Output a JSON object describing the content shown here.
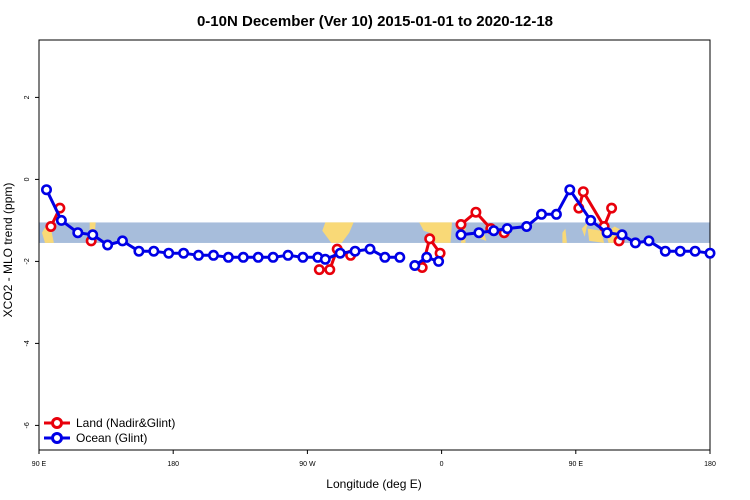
{
  "colors": {
    "land": "#e8000b",
    "ocean": "#0000e6",
    "map_ocean": "#a7bddb",
    "map_land": "#f9d977"
  },
  "chart_data": {
    "type": "line",
    "title": "0-10N December (Ver 10)   2015-01-01 to 2020-12-18",
    "xlabel": "Longitude (deg E)",
    "ylabel": "XCO2 - MLO trend (ppm)",
    "xlim": [
      90,
      540
    ],
    "ylim": [
      -6.6,
      3.4
    ],
    "xticks": [
      {
        "value": 90,
        "label": "90 E"
      },
      {
        "value": 180,
        "label": "180"
      },
      {
        "value": 270,
        "label": "90 W"
      },
      {
        "value": 360,
        "label": "0"
      },
      {
        "value": 450,
        "label": "90 E"
      },
      {
        "value": 540,
        "label": "180"
      }
    ],
    "yticks": [
      {
        "value": 2,
        "label": "2"
      },
      {
        "value": 0,
        "label": "0"
      },
      {
        "value": -2,
        "label": "-2"
      },
      {
        "value": -4,
        "label": "-4"
      },
      {
        "value": -6,
        "label": "-6"
      }
    ],
    "map_band": {
      "lat_range": [
        -1.55,
        -1.05
      ]
    },
    "legend_position": "bottom-left",
    "series": [
      {
        "name": "Land (Nadir&Glint)",
        "color_key": "land",
        "segments": [
          {
            "x": [
              98,
              104
            ],
            "y": [
              -1.15,
              -0.7
            ]
          },
          {
            "x": [
              125
            ],
            "y": [
              -1.5
            ]
          },
          {
            "x": [
              278,
              285,
              290,
              299
            ],
            "y": [
              -2.2,
              -2.2,
              -1.7,
              -1.85
            ]
          },
          {
            "x": [
              347,
              352,
              359
            ],
            "y": [
              -2.15,
              -1.45,
              -1.8
            ]
          },
          {
            "x": [
              373,
              383,
              393,
              402
            ],
            "y": [
              -1.1,
              -0.8,
              -1.2,
              -1.3
            ]
          },
          {
            "x": [
              452,
              455,
              469,
              474
            ],
            "y": [
              -0.7,
              -0.3,
              -1.15,
              -0.7
            ]
          },
          {
            "x": [
              479
            ],
            "y": [
              -1.5
            ]
          }
        ]
      },
      {
        "name": "Ocean (Glint)",
        "color_key": "ocean",
        "segments": [
          {
            "x": [
              95,
              105,
              116,
              126,
              136,
              146,
              157,
              167,
              177,
              187,
              197,
              207,
              217,
              227,
              237,
              247,
              257,
              267,
              277,
              282,
              292,
              302,
              312,
              322,
              332
            ],
            "y": [
              -0.25,
              -1.0,
              -1.3,
              -1.35,
              -1.6,
              -1.5,
              -1.75,
              -1.75,
              -1.8,
              -1.8,
              -1.85,
              -1.85,
              -1.9,
              -1.9,
              -1.9,
              -1.9,
              -1.85,
              -1.9,
              -1.9,
              -1.95,
              -1.8,
              -1.75,
              -1.7,
              -1.9,
              -1.9
            ]
          },
          {
            "x": [
              342,
              350,
              358
            ],
            "y": [
              -2.1,
              -1.9,
              -2.0
            ]
          },
          {
            "x": [
              373,
              385,
              395,
              404,
              417,
              427,
              437,
              446,
              460,
              471,
              481,
              490,
              499,
              510,
              520,
              530,
              540
            ],
            "y": [
              -1.35,
              -1.3,
              -1.25,
              -1.2,
              -1.15,
              -0.85,
              -0.85,
              -0.25,
              -1.0,
              -1.3,
              -1.35,
              -1.55,
              -1.5,
              -1.75,
              -1.75,
              -1.75,
              -1.8
            ]
          }
        ]
      }
    ]
  }
}
